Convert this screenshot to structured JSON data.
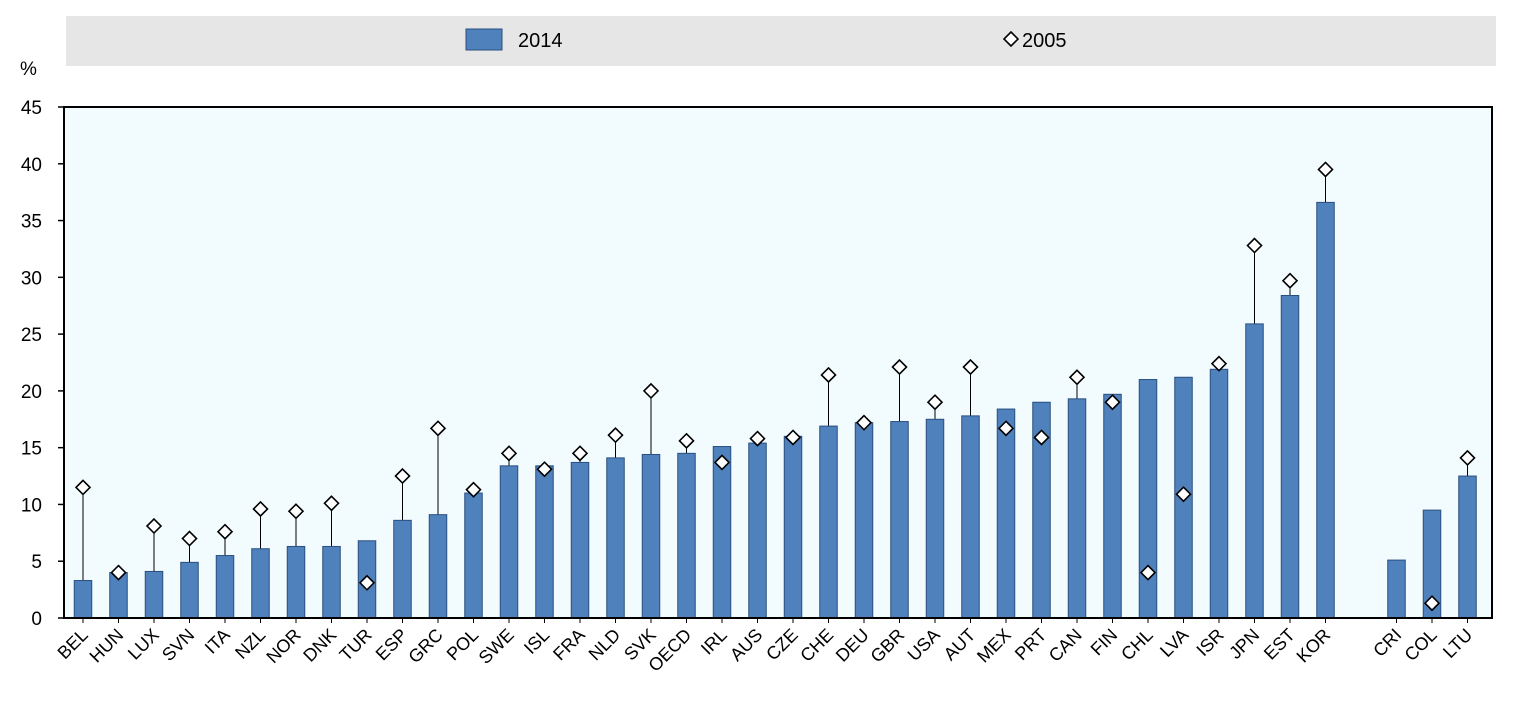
{
  "chart_data": {
    "type": "bar",
    "ylabel": "%",
    "ylim": [
      0,
      45
    ],
    "yticks": [
      0,
      5,
      10,
      15,
      20,
      25,
      30,
      35,
      40,
      45
    ],
    "grid": false,
    "legend_position": "top",
    "colors": {
      "bar": "#4f81bd",
      "bar_stroke": "#2a4f7f",
      "plot_background": "#f2fcff",
      "legend_background": "#e6e6e6",
      "marker_fill": "#ffffff",
      "marker_stroke": "#000000"
    },
    "groups": [
      {
        "categories": [
          "BEL",
          "HUN",
          "LUX",
          "SVN",
          "ITA",
          "NZL",
          "NOR",
          "DNK",
          "TUR",
          "ESP",
          "GRC",
          "POL",
          "SWE",
          "ISL",
          "FRA",
          "NLD",
          "SVK",
          "OECD",
          "IRL",
          "AUS",
          "CZE",
          "CHE",
          "DEU",
          "GBR",
          "USA",
          "AUT",
          "MEX",
          "PRT",
          "CAN",
          "FIN",
          "CHL",
          "LVA",
          "ISR",
          "JPN",
          "EST",
          "KOR"
        ]
      },
      {
        "categories": [
          "CRI",
          "COL",
          "LTU"
        ]
      }
    ],
    "series": [
      {
        "name": "2014",
        "kind": "bar",
        "values": [
          3.3,
          4.0,
          4.1,
          4.9,
          5.5,
          6.1,
          6.3,
          6.3,
          6.8,
          8.6,
          9.1,
          11.0,
          13.4,
          13.4,
          13.7,
          14.1,
          14.4,
          14.5,
          15.1,
          15.4,
          16.0,
          16.9,
          17.2,
          17.3,
          17.5,
          17.8,
          18.4,
          19.0,
          19.3,
          19.7,
          21.0,
          21.2,
          21.9,
          25.9,
          28.4,
          36.6,
          5.1,
          9.5,
          12.5
        ]
      },
      {
        "name": "2005",
        "kind": "marker",
        "marker": "diamond",
        "values": [
          11.5,
          4.0,
          8.1,
          7.0,
          7.6,
          9.6,
          9.4,
          10.1,
          3.1,
          12.5,
          16.7,
          11.3,
          14.5,
          13.1,
          14.5,
          16.1,
          20.0,
          15.6,
          13.7,
          15.8,
          15.9,
          21.4,
          17.2,
          22.1,
          19.0,
          22.1,
          16.7,
          15.9,
          21.2,
          19.0,
          4.0,
          10.9,
          22.4,
          32.8,
          29.7,
          39.5,
          null,
          1.3,
          14.1
        ]
      }
    ]
  }
}
